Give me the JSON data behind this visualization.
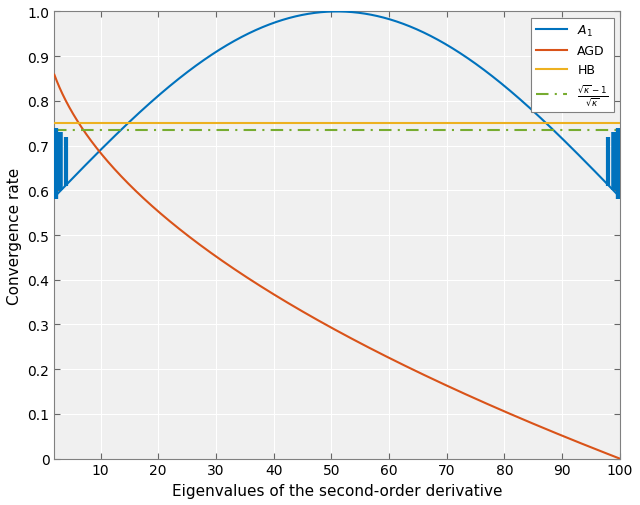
{
  "xlabel": "Eigenvalues of the second-order derivative",
  "ylabel": "Convergence rate",
  "xlim": [
    2,
    100
  ],
  "ylim": [
    0,
    1.0
  ],
  "lambda_min": 2,
  "lambda_max": 100,
  "legend_labels": [
    "$A_1$",
    "AGD",
    "HB",
    "$\\frac{\\sqrt{\\kappa}-1}{\\sqrt{\\kappa}}$"
  ],
  "colors": {
    "A1": "#0072BD",
    "AGD": "#D95319",
    "HB": "#EDB120",
    "lb": "#77AC30"
  },
  "HB_val": 0.75,
  "lb_val": 0.735,
  "bg_color": "#F0F0F0",
  "grid_color": "#FFFFFF",
  "figsize": [
    6.4,
    5.06
  ],
  "dpi": 100,
  "xticks": [
    10,
    20,
    30,
    40,
    50,
    60,
    70,
    80,
    90,
    100
  ],
  "yticks": [
    0,
    0.1,
    0.2,
    0.3,
    0.4,
    0.5,
    0.6,
    0.7,
    0.8,
    0.9,
    1.0
  ]
}
